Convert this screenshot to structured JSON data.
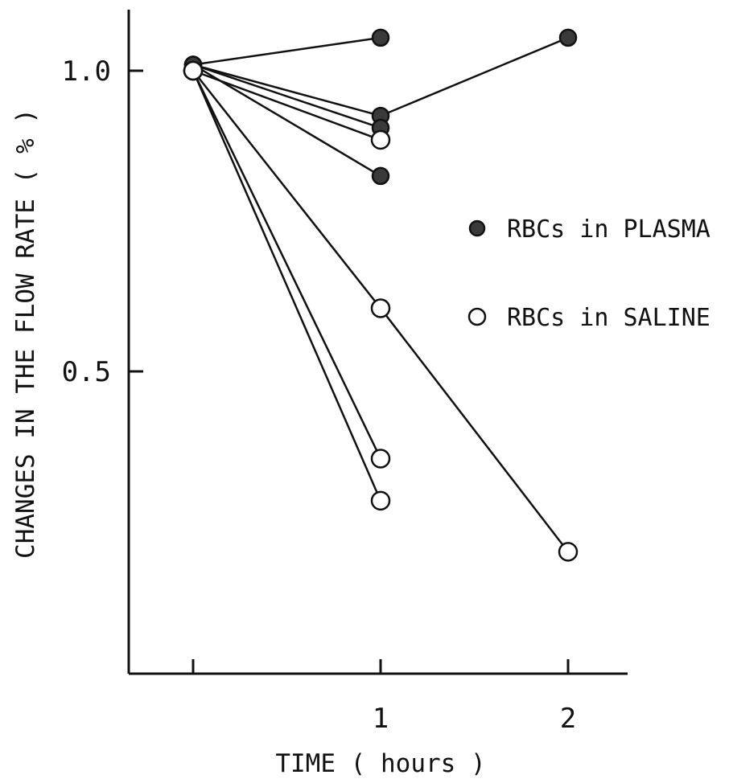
{
  "chart_data": {
    "type": "line",
    "xlabel": "TIME ( hours )",
    "ylabel": "CHANGES IN THE FLOW RATE ( % )",
    "x_ticks": [
      0,
      1,
      2
    ],
    "x_tick_labels": [
      "",
      "1",
      "2"
    ],
    "y_ticks": [
      0.5,
      1.0
    ],
    "y_tick_labels": [
      "0.5",
      "1.0"
    ],
    "xlim": [
      -0.35,
      2.3
    ],
    "ylim": [
      0.0,
      1.1
    ],
    "grid": false,
    "legend_position": "right",
    "legend": [
      {
        "label": "RBCs in PLASMA",
        "marker": "filled"
      },
      {
        "label": "RBCs in SALINE",
        "marker": "open"
      }
    ],
    "series": [
      {
        "group": "RBCs in PLASMA",
        "marker": "filled",
        "x": [
          0,
          1
        ],
        "y": [
          1.01,
          1.055
        ]
      },
      {
        "group": "RBCs in PLASMA",
        "marker": "filled",
        "x": [
          0,
          1,
          2
        ],
        "y": [
          1.01,
          0.925,
          1.055
        ]
      },
      {
        "group": "RBCs in PLASMA",
        "marker": "filled",
        "x": [
          0,
          1
        ],
        "y": [
          1.01,
          0.905
        ]
      },
      {
        "group": "RBCs in PLASMA",
        "marker": "filled",
        "x": [
          0,
          1
        ],
        "y": [
          1.01,
          0.825
        ]
      },
      {
        "group": "RBCs in SALINE",
        "marker": "open",
        "x": [
          0,
          1
        ],
        "y": [
          1.0,
          0.885
        ]
      },
      {
        "group": "RBCs in SALINE",
        "marker": "open",
        "x": [
          0,
          1,
          2
        ],
        "y": [
          1.0,
          0.605,
          0.2
        ]
      },
      {
        "group": "RBCs in SALINE",
        "marker": "open",
        "x": [
          0,
          1
        ],
        "y": [
          1.0,
          0.355
        ]
      },
      {
        "group": "RBCs in SALINE",
        "marker": "open",
        "x": [
          0,
          1
        ],
        "y": [
          1.0,
          0.285
        ]
      }
    ]
  }
}
